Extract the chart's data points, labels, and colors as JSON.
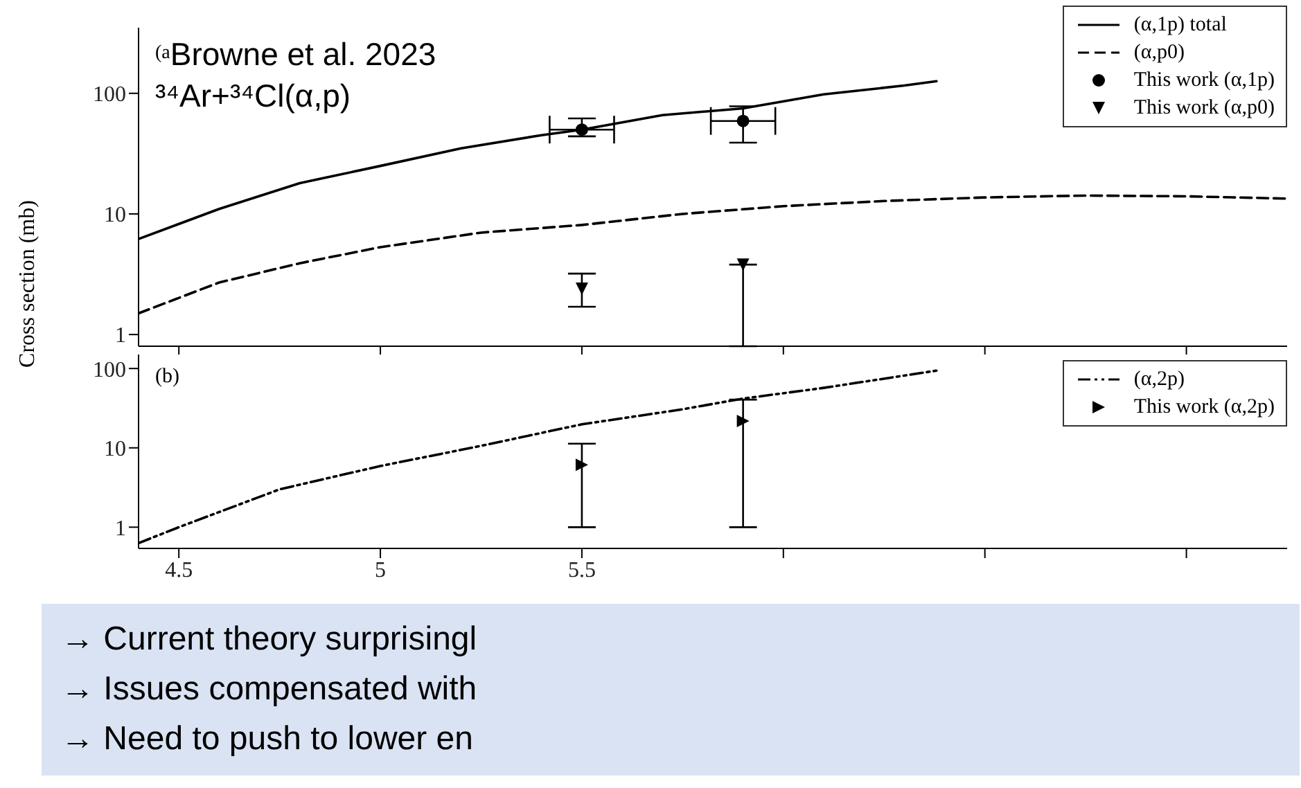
{
  "chart_data": [
    {
      "type": "line",
      "log": "y",
      "xlim": [
        4.4,
        7.25
      ],
      "xticks": [
        4.5,
        5,
        5.5,
        6,
        6.5,
        7
      ],
      "ylim": [
        0.8,
        350
      ],
      "yticks": [
        1,
        10,
        100
      ],
      "tick_labels": "y",
      "ylabel": "Cross section (mb)",
      "legend": "top right",
      "annotations": [
        "(a",
        "Browne et al. 2023",
        "³⁴Ar+³⁴Cl(α,p)"
      ],
      "series": [
        {
          "name": "(α,1p) total",
          "color": "#000000",
          "line_style": "solid",
          "marker": "none",
          "x": [
            4.4,
            4.6,
            4.8,
            5.0,
            5.2,
            5.4,
            5.5,
            5.7,
            5.9,
            6.1,
            6.3,
            6.38
          ],
          "values": [
            6.2,
            11,
            18,
            25,
            35,
            45,
            50,
            66,
            75,
            98,
            116,
            126
          ]
        },
        {
          "name": "(α,p0)",
          "color": "#000000",
          "line_style": "dashed",
          "marker": "none",
          "x": [
            4.4,
            4.6,
            4.8,
            5.0,
            5.25,
            5.5,
            5.75,
            6.0,
            6.25,
            6.5,
            6.75,
            7.0,
            7.25
          ],
          "values": [
            1.5,
            2.7,
            3.9,
            5.3,
            7.0,
            8.1,
            10,
            11.6,
            12.8,
            13.7,
            14.2,
            14,
            13.4
          ]
        },
        {
          "name": "This work (α,1p)",
          "type": "scatter",
          "color": "#000000",
          "marker": "circle",
          "x": [
            5.5,
            5.9
          ],
          "values": [
            50,
            59
          ],
          "errors": [
            [
              44,
              62
            ],
            [
              39,
              78
            ]
          ],
          "xerrors": [
            0.08,
            0.08
          ]
        },
        {
          "name": "This work (α,p0)",
          "type": "scatter",
          "color": "#000000",
          "marker": "triangle-down",
          "x": [
            5.5,
            5.9
          ],
          "values": [
            2.4,
            3.8
          ],
          "errors": [
            [
              1.7,
              3.2
            ],
            [
              0.8,
              3.8
            ]
          ]
        }
      ]
    },
    {
      "type": "line",
      "log": "y",
      "xlim": [
        4.4,
        7.25
      ],
      "xticks": [
        4.5,
        5,
        5.5,
        {
          "value": 6,
          "label": null
        },
        {
          "value": 6.5,
          "label": null
        },
        {
          "value": 7,
          "label": null
        }
      ],
      "ylim": [
        0.54,
        150
      ],
      "yticks": [
        1,
        10,
        100
      ],
      "legend": "top right",
      "annotations": [
        "(b)",
        "→ Current theory surprisingl",
        "→ Issues compensated with",
        "→ Need to push to lower en"
      ],
      "series": [
        {
          "name": "(α,2p)",
          "color": "#000000",
          "line_style": "dotted",
          "marker": "none",
          "x": [
            4.4,
            4.5,
            4.75,
            5.0,
            5.25,
            5.5,
            5.75,
            5.9,
            6.1,
            6.38
          ],
          "values": [
            0.63,
            1.0,
            3.0,
            5.9,
            10.6,
            19.8,
            30.6,
            41.8,
            57,
            94
          ]
        },
        {
          "name": "This work (α,2p)",
          "type": "scatter",
          "color": "#000000",
          "marker": "triangle-right",
          "x": [
            5.5,
            5.9
          ],
          "values": [
            6.1,
            21.8
          ],
          "errors": [
            [
              1.0,
              11.3
            ],
            [
              1.0,
              40.5
            ]
          ]
        }
      ]
    }
  ]
}
